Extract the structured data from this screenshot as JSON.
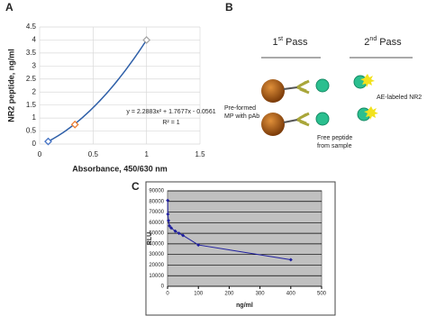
{
  "panel_labels": [
    "A",
    "B",
    "C"
  ],
  "chart_data": [
    {
      "type": "scatter",
      "x_label": "Absorbance, 450/630 nm",
      "y_label": "NR2 peptide, ng/ml",
      "x": [
        0.08,
        0.33,
        1
      ],
      "values": [
        0.1,
        0.75,
        4
      ],
      "point_colors": [
        "#4472c4",
        "#ed7d31",
        "#a5a5a5"
      ],
      "trendline": {
        "coefficients": [
          2.2883,
          1.7677,
          -0.0561
        ],
        "color": "#2e5fa8"
      },
      "annotations": [
        "y = 2.2883x² + 1.7677x - 0.0561",
        "R² = 1"
      ],
      "xlim": [
        0,
        1.5
      ],
      "xticks": [
        0,
        0.5,
        1,
        1.5
      ],
      "ylim": [
        0,
        4.5
      ],
      "yticks": [
        0,
        0.5,
        1,
        1.5,
        2,
        2.5,
        3,
        3.5,
        4,
        4.5
      ],
      "grid": true
    },
    {
      "type": "line",
      "x_label": "ng/ml",
      "y_label": "RLU",
      "color": "#1f1f9f",
      "x": [
        0.5,
        1,
        3,
        6,
        12,
        25,
        37,
        50,
        100,
        400
      ],
      "values": [
        81000,
        68000,
        62000,
        57000,
        55000,
        52000,
        50000,
        48000,
        39000,
        25000
      ],
      "xlim": [
        0,
        500
      ],
      "xticks": [
        0,
        100,
        200,
        300,
        400,
        500
      ],
      "ylim": [
        0,
        90000
      ],
      "yticks": [
        0,
        10000,
        20000,
        30000,
        40000,
        50000,
        60000,
        70000,
        80000,
        90000
      ],
      "grid": true,
      "plot_background": "#c0c0c0"
    }
  ],
  "diagram": {
    "pass1": {
      "number": "1",
      "suffix": "st",
      "word": "Pass"
    },
    "pass2": {
      "number": "2",
      "suffix": "nd",
      "word": "Pass"
    },
    "mp_label": [
      "Pre-formed",
      "MP with pAb"
    ],
    "peptide_label": [
      "Free peptide",
      "from sample"
    ],
    "ae_label": "AE-labeled NR2"
  }
}
